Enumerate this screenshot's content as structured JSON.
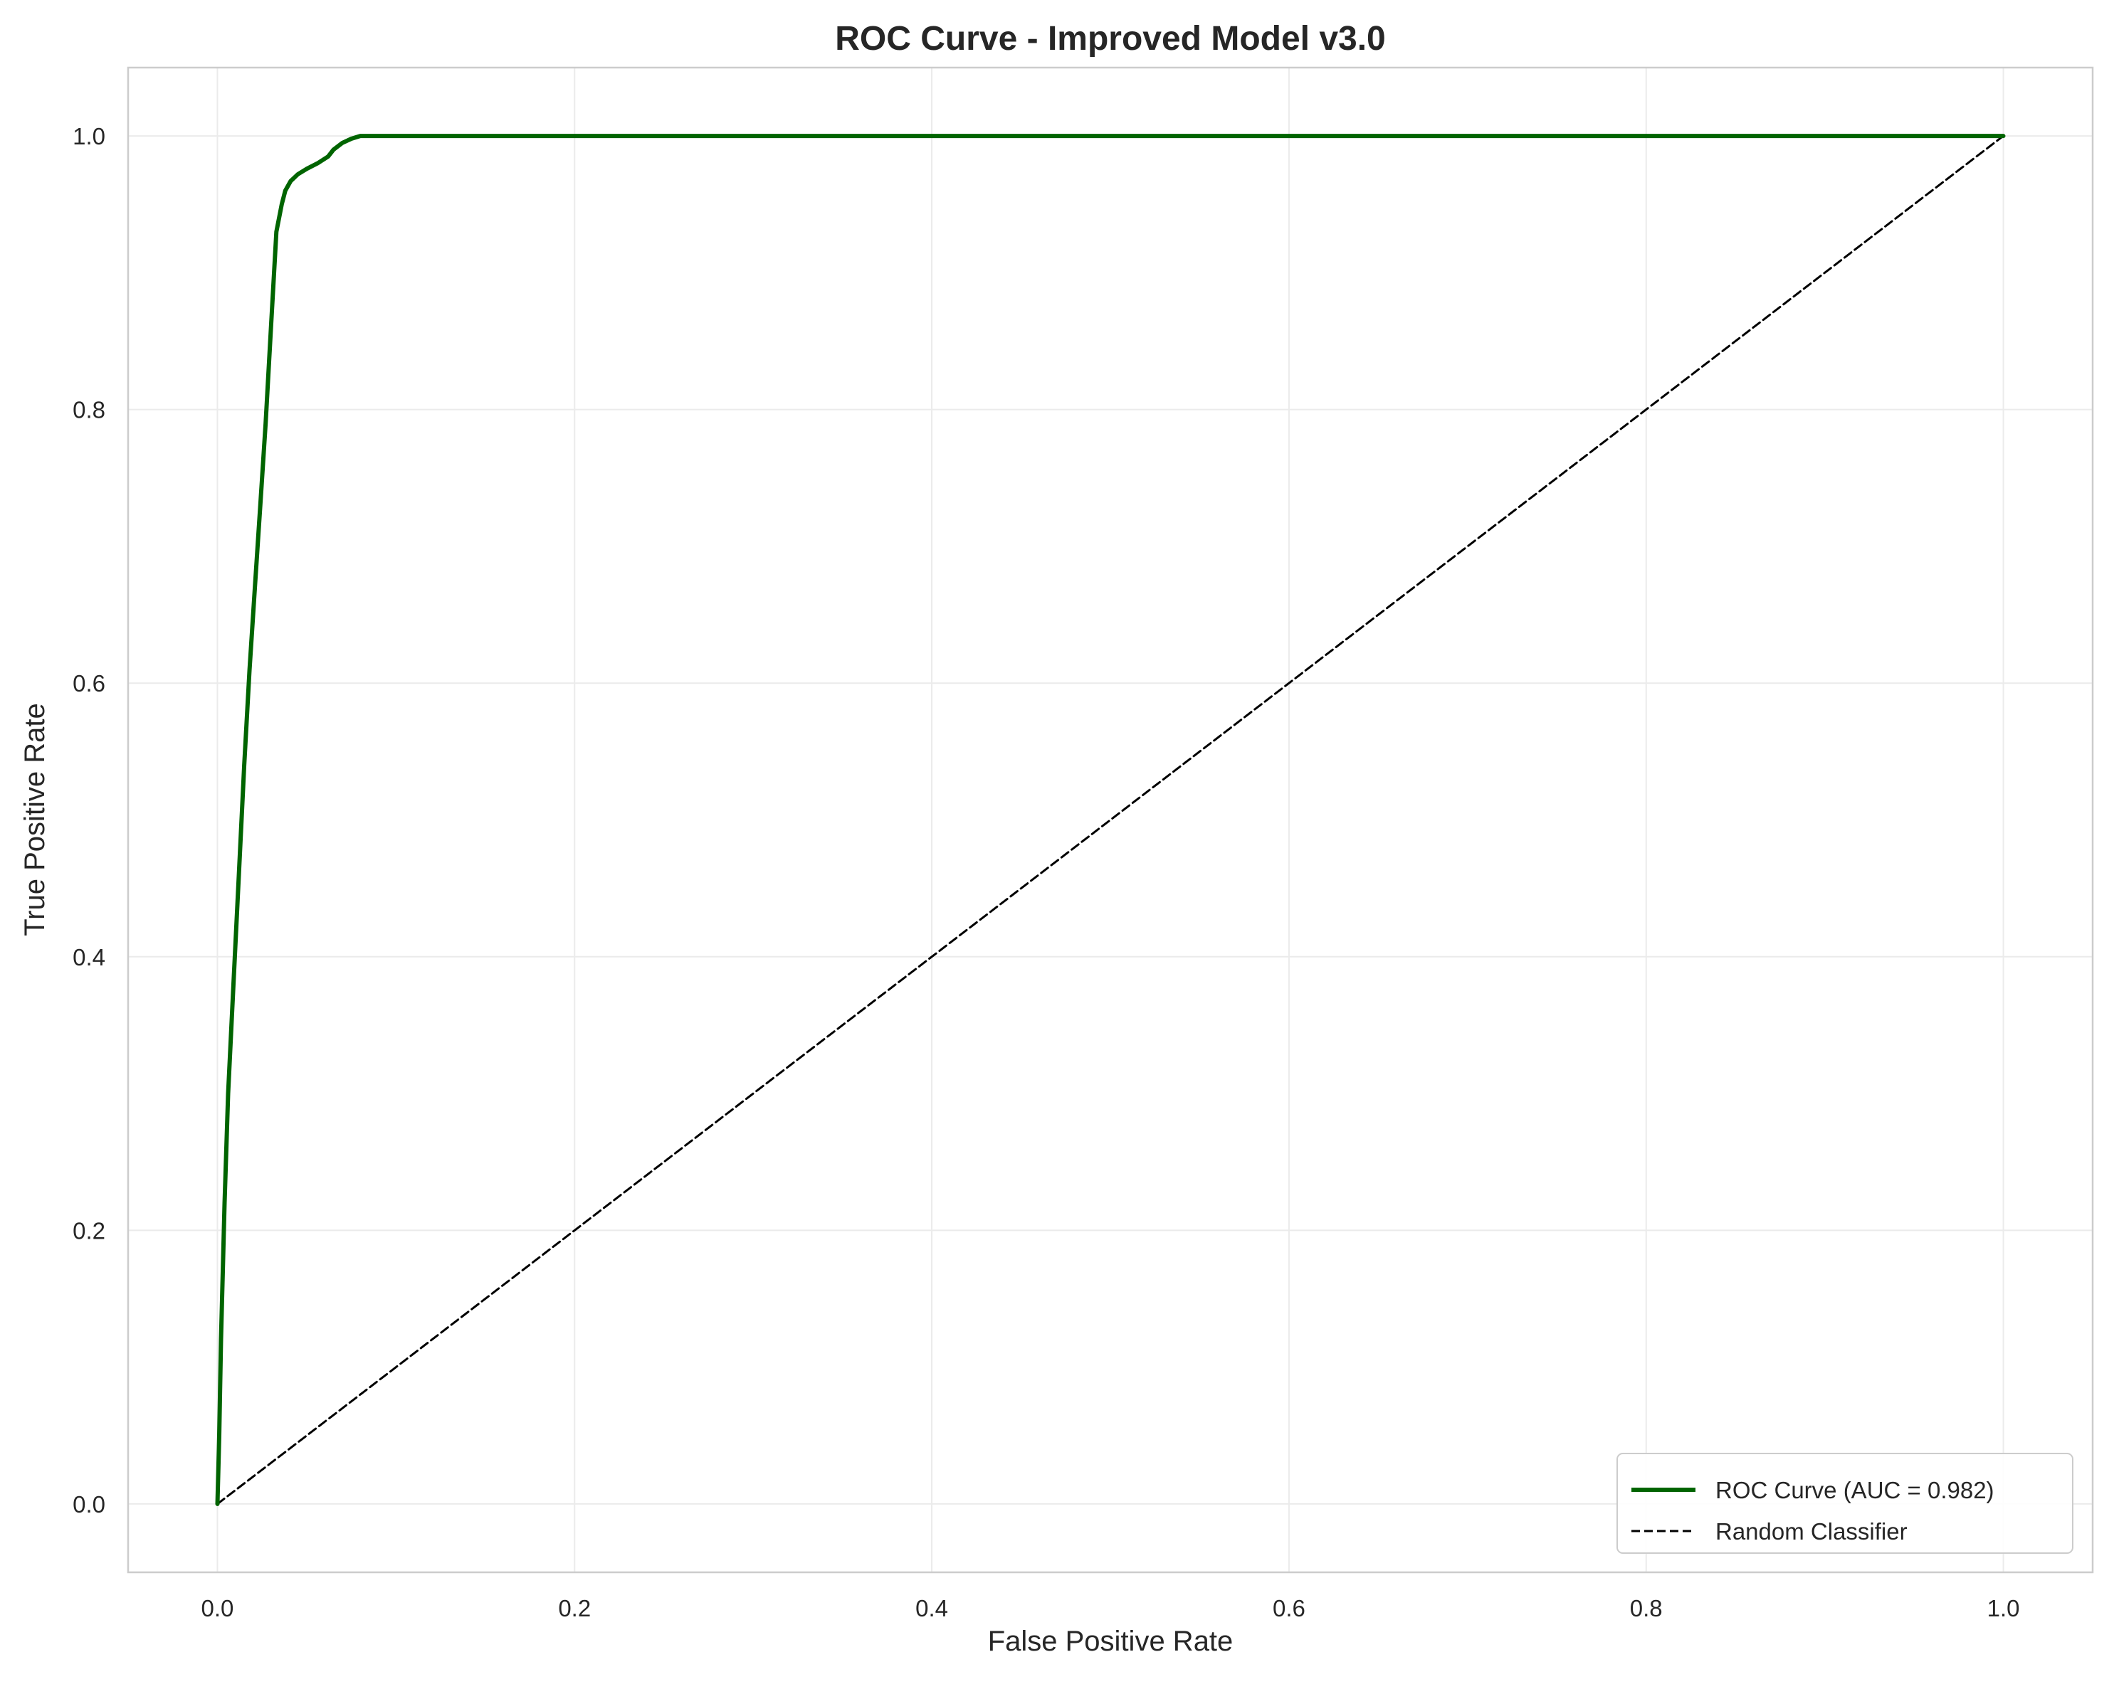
{
  "chart_data": {
    "type": "line",
    "title": "ROC Curve - Improved Model v3.0",
    "xlabel": "False Positive Rate",
    "ylabel": "True Positive Rate",
    "xlim": [
      -0.05,
      1.05
    ],
    "ylim": [
      -0.05,
      1.05
    ],
    "xticks": [
      0.0,
      0.2,
      0.4,
      0.6,
      0.8,
      1.0
    ],
    "yticks": [
      0.0,
      0.2,
      0.4,
      0.6,
      0.8,
      1.0
    ],
    "xtick_labels": [
      "0.0",
      "0.2",
      "0.4",
      "0.6",
      "0.8",
      "1.0"
    ],
    "ytick_labels": [
      "0.0",
      "0.2",
      "0.4",
      "0.6",
      "0.8",
      "1.0"
    ],
    "grid": true,
    "legend_position": "bottom-right",
    "series": [
      {
        "name": "ROC Curve (AUC = 0.982)",
        "color": "#006400",
        "style": "solid",
        "x": [
          0.0,
          0.001,
          0.002,
          0.004,
          0.006,
          0.009,
          0.012,
          0.015,
          0.018,
          0.021,
          0.024,
          0.027,
          0.03,
          0.033,
          0.036,
          0.038,
          0.041,
          0.045,
          0.05,
          0.056,
          0.062,
          0.065,
          0.07,
          0.075,
          0.08,
          0.1,
          0.3,
          0.5,
          0.7,
          0.9,
          1.0
        ],
        "y": [
          0.0,
          0.05,
          0.12,
          0.22,
          0.3,
          0.38,
          0.46,
          0.54,
          0.61,
          0.67,
          0.73,
          0.79,
          0.86,
          0.93,
          0.95,
          0.96,
          0.967,
          0.972,
          0.976,
          0.98,
          0.985,
          0.99,
          0.995,
          0.998,
          1.0,
          1.0,
          1.0,
          1.0,
          1.0,
          1.0,
          1.0
        ]
      },
      {
        "name": "Random Classifier",
        "color": "#000000",
        "style": "dashed",
        "x": [
          0.0,
          1.0
        ],
        "y": [
          0.0,
          1.0
        ]
      }
    ]
  }
}
